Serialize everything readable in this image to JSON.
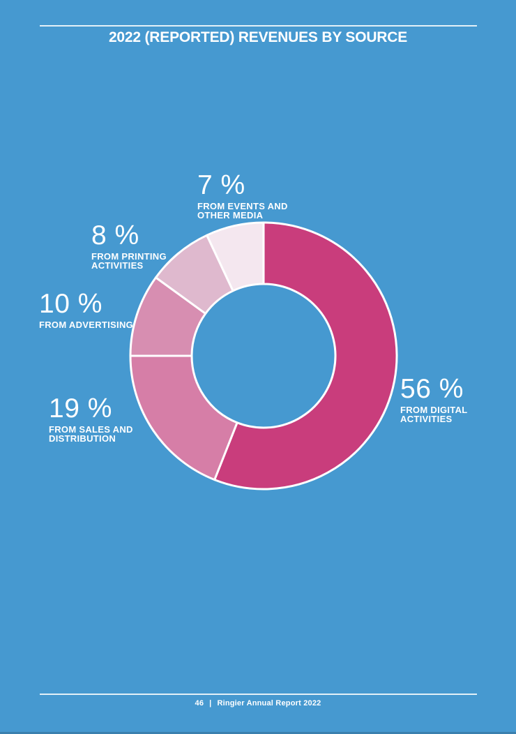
{
  "page": {
    "background_color": "#4699D0",
    "header": {
      "title": "2022 (REPORTED) REVENUES BY SOURCE"
    },
    "footer": {
      "page_number": "46",
      "separator": "|",
      "report_name": "Ringier Annual Report 2022"
    }
  },
  "chart_data": {
    "type": "pie",
    "subtype": "donut",
    "title": "2022 (REPORTED) REVENUES BY SOURCE",
    "unit": "percent",
    "total": 100,
    "start_angle_deg": 0,
    "direction": "clockwise",
    "stroke_color": "#FFFFFF",
    "inner_radius_ratio": 0.54,
    "hole_color": "#4699D0",
    "segments": [
      {
        "key": "digital",
        "value": 56,
        "display_value": "56 %",
        "color": "#C93D7C",
        "label": "FROM DIGITAL ACTIVITIES",
        "label_lines": [
          "FROM DIGITAL",
          "ACTIVITIES"
        ]
      },
      {
        "key": "sales-distribution",
        "value": 19,
        "display_value": "19 %",
        "color": "#D67EA7",
        "label": "FROM SALES AND DISTRIBUTION",
        "label_lines": [
          "FROM SALES AND",
          "DISTRIBUTION"
        ]
      },
      {
        "key": "advertising",
        "value": 10,
        "display_value": "10 %",
        "color": "#D78EB1",
        "label": "FROM ADVERTISING",
        "label_lines": [
          "FROM ADVERTISING"
        ]
      },
      {
        "key": "printing",
        "value": 8,
        "display_value": "8 %",
        "color": "#DFB9CE",
        "label": "FROM PRINTING ACTIVITIES",
        "label_lines": [
          "FROM PRINTING",
          "ACTIVITIES"
        ]
      },
      {
        "key": "events-other-media",
        "value": 7,
        "display_value": "7 %",
        "color": "#F4E7EF",
        "label": "FROM EVENTS AND OTHER MEDIA",
        "label_lines": [
          "FROM EVENTS AND",
          "OTHER MEDIA"
        ]
      }
    ]
  }
}
